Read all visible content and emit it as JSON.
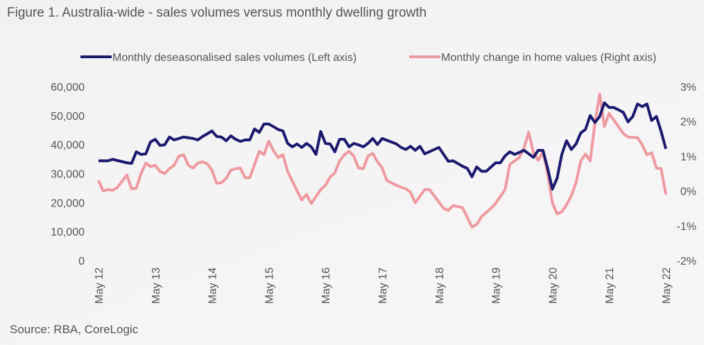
{
  "title": "Figure 1. Australia-wide - sales volumes versus monthly dwelling growth",
  "source": "Source: RBA, CoreLogic",
  "chart_data": {
    "type": "line",
    "title": "Figure 1. Australia-wide - sales volumes versus monthly dwelling growth",
    "legend_position": "top",
    "grid": false,
    "x_range": [
      "2012-05",
      "2022-05"
    ],
    "x_ticks": [
      "May 12",
      "May 13",
      "May 14",
      "May 15",
      "May 16",
      "May 17",
      "May 18",
      "May 19",
      "May 20",
      "May 21",
      "May 22"
    ],
    "y_left": {
      "range": [
        0,
        60000
      ],
      "ticks": [
        "0",
        "10,000",
        "20,000",
        "30,000",
        "40,000",
        "50,000",
        "60,000"
      ]
    },
    "y_right": {
      "range": [
        -2,
        3
      ],
      "ticks": [
        "-2%",
        "-1%",
        "0%",
        "1%",
        "2%",
        "3%"
      ]
    },
    "series": [
      {
        "name": "Monthly deseasonalised sales volumes (Left axis)",
        "axis": "left",
        "color": "#1c1a6e",
        "points": [
          [
            "2012-05",
            34400
          ],
          [
            "2012-07",
            34400
          ],
          [
            "2012-08",
            34900
          ],
          [
            "2012-11",
            33700
          ],
          [
            "2012-12",
            33500
          ],
          [
            "2013-01",
            37500
          ],
          [
            "2013-02",
            36600
          ],
          [
            "2013-03",
            36800
          ],
          [
            "2013-04",
            40900
          ],
          [
            "2013-05",
            41800
          ],
          [
            "2013-06",
            39700
          ],
          [
            "2013-07",
            39900
          ],
          [
            "2013-08",
            42600
          ],
          [
            "2013-09",
            41600
          ],
          [
            "2013-11",
            42600
          ],
          [
            "2014-01",
            42100
          ],
          [
            "2014-02",
            41600
          ],
          [
            "2014-03",
            42800
          ],
          [
            "2014-04",
            43700
          ],
          [
            "2014-05",
            44700
          ],
          [
            "2014-06",
            42800
          ],
          [
            "2014-07",
            42600
          ],
          [
            "2014-08",
            41300
          ],
          [
            "2014-09",
            43000
          ],
          [
            "2014-10",
            41800
          ],
          [
            "2014-11",
            41100
          ],
          [
            "2014-12",
            41600
          ],
          [
            "2015-01",
            41600
          ],
          [
            "2015-02",
            45400
          ],
          [
            "2015-03",
            44200
          ],
          [
            "2015-04",
            47100
          ],
          [
            "2015-05",
            47100
          ],
          [
            "2015-06",
            46200
          ],
          [
            "2015-07",
            45200
          ],
          [
            "2015-08",
            44700
          ],
          [
            "2015-09",
            40400
          ],
          [
            "2015-10",
            39200
          ],
          [
            "2015-11",
            40200
          ],
          [
            "2015-12",
            39000
          ],
          [
            "2016-01",
            40400
          ],
          [
            "2016-02",
            39200
          ],
          [
            "2016-03",
            36600
          ],
          [
            "2016-04",
            44500
          ],
          [
            "2016-05",
            40400
          ],
          [
            "2016-06",
            40200
          ],
          [
            "2016-07",
            37500
          ],
          [
            "2016-08",
            41800
          ],
          [
            "2016-09",
            41800
          ],
          [
            "2016-10",
            39200
          ],
          [
            "2016-11",
            40400
          ],
          [
            "2016-12",
            39900
          ],
          [
            "2017-01",
            39200
          ],
          [
            "2017-02",
            40400
          ],
          [
            "2017-03",
            42100
          ],
          [
            "2017-04",
            40000
          ],
          [
            "2017-05",
            42100
          ],
          [
            "2017-08",
            40200
          ],
          [
            "2017-09",
            39000
          ],
          [
            "2017-10",
            38300
          ],
          [
            "2017-11",
            39400
          ],
          [
            "2017-12",
            38000
          ],
          [
            "2018-01",
            39400
          ],
          [
            "2018-02",
            36800
          ],
          [
            "2018-05",
            39000
          ],
          [
            "2018-07",
            34200
          ],
          [
            "2018-08",
            34400
          ],
          [
            "2018-10",
            32500
          ],
          [
            "2018-11",
            31800
          ],
          [
            "2018-12",
            28900
          ],
          [
            "2019-01",
            32300
          ],
          [
            "2019-02",
            30800
          ],
          [
            "2019-03",
            30800
          ],
          [
            "2019-05",
            33700
          ],
          [
            "2019-06",
            33700
          ],
          [
            "2019-07",
            36100
          ],
          [
            "2019-08",
            37500
          ],
          [
            "2019-09",
            36600
          ],
          [
            "2019-11",
            38000
          ],
          [
            "2020-01",
            35600
          ],
          [
            "2020-02",
            38000
          ],
          [
            "2020-03",
            38000
          ],
          [
            "2020-04",
            31800
          ],
          [
            "2020-05",
            24600
          ],
          [
            "2020-06",
            28400
          ],
          [
            "2020-07",
            36600
          ],
          [
            "2020-08",
            41300
          ],
          [
            "2020-09",
            38300
          ],
          [
            "2020-10",
            40200
          ],
          [
            "2020-11",
            44000
          ],
          [
            "2020-12",
            45200
          ],
          [
            "2021-01",
            50000
          ],
          [
            "2021-02",
            47600
          ],
          [
            "2021-03",
            49700
          ],
          [
            "2021-04",
            54400
          ],
          [
            "2021-05",
            52800
          ],
          [
            "2021-06",
            52800
          ],
          [
            "2021-08",
            51100
          ],
          [
            "2021-09",
            47800
          ],
          [
            "2021-10",
            49700
          ],
          [
            "2021-11",
            54000
          ],
          [
            "2021-12",
            53100
          ],
          [
            "2022-01",
            54000
          ],
          [
            "2022-02",
            48300
          ],
          [
            "2022-03",
            49700
          ],
          [
            "2022-04",
            44500
          ],
          [
            "2022-05",
            38500
          ]
        ]
      },
      {
        "name": "Monthly change in home values (Right axis)",
        "axis": "right",
        "color": "#ee9aa0",
        "points": [
          [
            "2012-05",
            0.3
          ],
          [
            "2012-06",
            0.0
          ],
          [
            "2012-07",
            0.04
          ],
          [
            "2012-08",
            0.02
          ],
          [
            "2012-09",
            0.1
          ],
          [
            "2012-11",
            0.46
          ],
          [
            "2012-12",
            0.06
          ],
          [
            "2013-01",
            0.08
          ],
          [
            "2013-02",
            0.5
          ],
          [
            "2013-03",
            0.8
          ],
          [
            "2013-04",
            0.7
          ],
          [
            "2013-05",
            0.74
          ],
          [
            "2013-06",
            0.56
          ],
          [
            "2013-07",
            0.5
          ],
          [
            "2013-08",
            0.64
          ],
          [
            "2013-09",
            0.74
          ],
          [
            "2013-10",
            1.0
          ],
          [
            "2013-11",
            1.04
          ],
          [
            "2013-12",
            0.74
          ],
          [
            "2014-01",
            0.66
          ],
          [
            "2014-02",
            0.8
          ],
          [
            "2014-03",
            0.84
          ],
          [
            "2014-04",
            0.78
          ],
          [
            "2014-05",
            0.6
          ],
          [
            "2014-06",
            0.22
          ],
          [
            "2014-07",
            0.24
          ],
          [
            "2014-08",
            0.36
          ],
          [
            "2014-09",
            0.6
          ],
          [
            "2014-10",
            0.64
          ],
          [
            "2014-11",
            0.66
          ],
          [
            "2014-12",
            0.38
          ],
          [
            "2015-01",
            0.38
          ],
          [
            "2015-02",
            0.76
          ],
          [
            "2015-03",
            1.14
          ],
          [
            "2015-04",
            1.04
          ],
          [
            "2015-05",
            1.43
          ],
          [
            "2015-06",
            1.16
          ],
          [
            "2015-07",
            0.96
          ],
          [
            "2015-08",
            1.04
          ],
          [
            "2015-09",
            0.56
          ],
          [
            "2015-11",
            0.0
          ],
          [
            "2015-12",
            -0.26
          ],
          [
            "2016-01",
            -0.1
          ],
          [
            "2016-02",
            -0.36
          ],
          [
            "2016-04",
            0.04
          ],
          [
            "2016-05",
            0.16
          ],
          [
            "2016-06",
            0.4
          ],
          [
            "2016-07",
            0.52
          ],
          [
            "2016-08",
            0.86
          ],
          [
            "2016-09",
            1.04
          ],
          [
            "2016-10",
            1.14
          ],
          [
            "2016-11",
            1.0
          ],
          [
            "2016-12",
            0.66
          ],
          [
            "2017-01",
            0.64
          ],
          [
            "2017-02",
            1.0
          ],
          [
            "2017-03",
            1.08
          ],
          [
            "2017-04",
            0.84
          ],
          [
            "2017-05",
            0.66
          ],
          [
            "2017-06",
            0.3
          ],
          [
            "2017-08",
            0.16
          ],
          [
            "2017-10",
            0.06
          ],
          [
            "2017-11",
            -0.04
          ],
          [
            "2017-12",
            -0.34
          ],
          [
            "2018-02",
            0.04
          ],
          [
            "2018-03",
            0.04
          ],
          [
            "2018-06",
            -0.5
          ],
          [
            "2018-07",
            -0.56
          ],
          [
            "2018-08",
            -0.42
          ],
          [
            "2018-10",
            -0.48
          ],
          [
            "2018-11",
            -0.76
          ],
          [
            "2018-12",
            -1.04
          ],
          [
            "2019-01",
            -0.96
          ],
          [
            "2019-02",
            -0.74
          ],
          [
            "2019-04",
            -0.5
          ],
          [
            "2019-05",
            -0.36
          ],
          [
            "2019-07",
            0.04
          ],
          [
            "2019-08",
            0.76
          ],
          [
            "2019-10",
            0.96
          ],
          [
            "2019-11",
            1.24
          ],
          [
            "2019-12",
            1.69
          ],
          [
            "2020-01",
            1.1
          ],
          [
            "2020-02",
            0.88
          ],
          [
            "2020-03",
            1.12
          ],
          [
            "2020-04",
            0.5
          ],
          [
            "2020-05",
            -0.34
          ],
          [
            "2020-06",
            -0.66
          ],
          [
            "2020-07",
            -0.6
          ],
          [
            "2020-08",
            -0.4
          ],
          [
            "2020-09",
            -0.14
          ],
          [
            "2020-10",
            0.24
          ],
          [
            "2020-11",
            0.86
          ],
          [
            "2020-12",
            1.06
          ],
          [
            "2021-01",
            0.86
          ],
          [
            "2021-02",
            1.95
          ],
          [
            "2021-03",
            2.79
          ],
          [
            "2021-04",
            1.85
          ],
          [
            "2021-05",
            2.23
          ],
          [
            "2021-08",
            1.65
          ],
          [
            "2021-09",
            1.55
          ],
          [
            "2021-11",
            1.53
          ],
          [
            "2021-12",
            1.33
          ],
          [
            "2022-01",
            1.04
          ],
          [
            "2022-02",
            1.1
          ],
          [
            "2022-03",
            0.66
          ],
          [
            "2022-04",
            0.64
          ],
          [
            "2022-05",
            -0.1
          ]
        ]
      }
    ]
  }
}
